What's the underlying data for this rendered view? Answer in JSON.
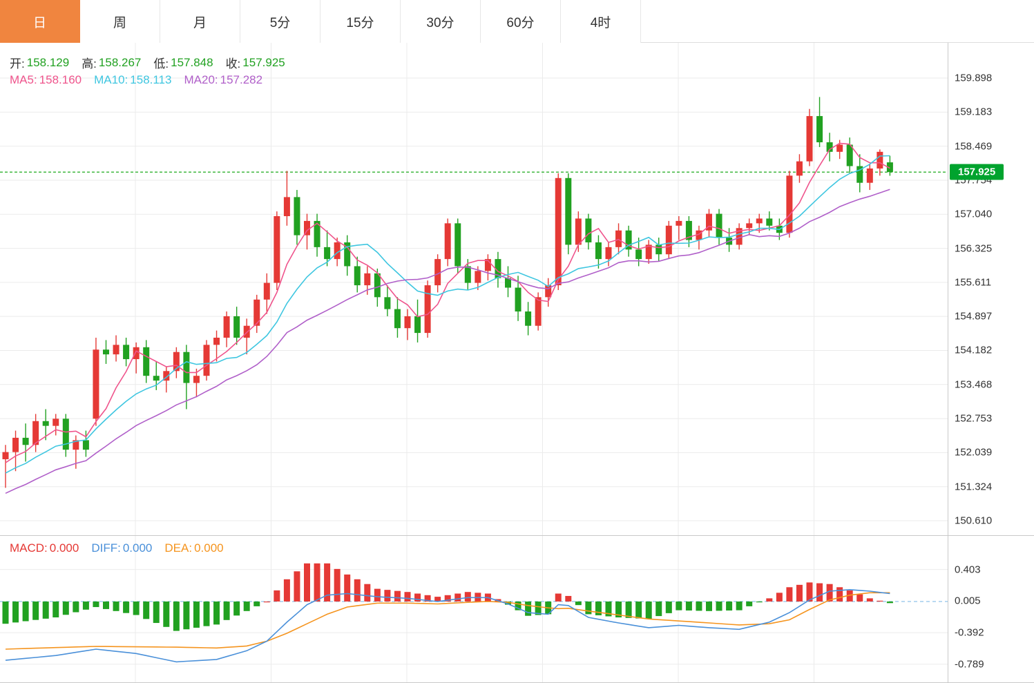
{
  "tabs": {
    "items": [
      {
        "label": "日",
        "active": true
      },
      {
        "label": "周",
        "active": false
      },
      {
        "label": "月",
        "active": false
      },
      {
        "label": "5分",
        "active": false
      },
      {
        "label": "15分",
        "active": false
      },
      {
        "label": "30分",
        "active": false
      },
      {
        "label": "60分",
        "active": false
      },
      {
        "label": "4时",
        "active": false
      }
    ]
  },
  "legend": {
    "ohlc": {
      "open_label": "开:",
      "open": "158.129",
      "high_label": "高:",
      "high": "158.267",
      "low_label": "低:",
      "low": "157.848",
      "close_label": "收:",
      "close": "157.925"
    },
    "ma": {
      "ma5_label": "MA5:",
      "ma5": "158.160",
      "ma10_label": "MA10:",
      "ma10": "158.113",
      "ma20_label": "MA20:",
      "ma20": "157.282"
    }
  },
  "macd_legend": {
    "macd_label": "MACD:",
    "macd": "0.000",
    "diff_label": "DIFF:",
    "diff": "0.000",
    "dea_label": "DEA:",
    "dea": "0.000"
  },
  "current_price": {
    "value": "157.925",
    "price": 157.925
  },
  "colors": {
    "up": "#e53935",
    "down": "#21a121",
    "tab_active": "#f0853f",
    "price_tag_bg": "#00a32e",
    "current_line": "#00a000",
    "ma5": "#ef548c",
    "ma10": "#3ec6e0",
    "ma20": "#b05fc9",
    "diff": "#4a90d9",
    "dea": "#f5941e",
    "grid": "#ebebeb",
    "zero_line": "#8fc2ea"
  },
  "chart_data": {
    "type": "candlestick",
    "price_ticks": [
      "159.898",
      "159.183",
      "158.469",
      "157.754",
      "157.040",
      "156.325",
      "155.611",
      "154.897",
      "154.182",
      "153.468",
      "152.753",
      "152.039",
      "151.324",
      "150.610"
    ],
    "macd_ticks": [
      "0.403",
      "0.005",
      "-0.392",
      "-0.789"
    ],
    "ma_periods": [
      5,
      10,
      20
    ],
    "pre_closes": [
      150.3,
      150.38,
      150.47,
      150.55,
      150.64,
      150.72,
      150.8,
      150.89,
      150.97,
      151.06,
      151.14,
      151.22,
      151.31,
      151.39,
      151.48,
      151.56,
      151.64,
      151.73,
      151.81,
      151.9
    ],
    "candles": [
      [
        151.9,
        152.2,
        151.3,
        152.05
      ],
      [
        152.05,
        152.5,
        151.65,
        152.35
      ],
      [
        152.35,
        152.65,
        151.85,
        152.2
      ],
      [
        152.2,
        152.85,
        152.05,
        152.7
      ],
      [
        152.7,
        152.95,
        152.3,
        152.6
      ],
      [
        152.6,
        152.85,
        152.4,
        152.75
      ],
      [
        152.75,
        152.85,
        151.95,
        152.1
      ],
      [
        152.1,
        152.4,
        151.7,
        152.3
      ],
      [
        152.3,
        152.5,
        151.95,
        152.1
      ],
      [
        152.75,
        154.45,
        152.6,
        154.2
      ],
      [
        154.2,
        154.4,
        153.9,
        154.1
      ],
      [
        154.1,
        154.5,
        153.95,
        154.3
      ],
      [
        154.3,
        154.45,
        153.85,
        154.0
      ],
      [
        154.0,
        154.35,
        153.7,
        154.25
      ],
      [
        154.25,
        154.4,
        153.5,
        153.65
      ],
      [
        153.65,
        153.95,
        153.35,
        153.55
      ],
      [
        153.55,
        153.85,
        153.3,
        153.75
      ],
      [
        153.75,
        154.25,
        153.6,
        154.15
      ],
      [
        154.15,
        154.3,
        152.95,
        153.5
      ],
      [
        153.5,
        153.8,
        153.2,
        153.65
      ],
      [
        153.65,
        154.4,
        153.55,
        154.3
      ],
      [
        154.3,
        154.6,
        153.95,
        154.45
      ],
      [
        154.45,
        155.0,
        154.25,
        154.9
      ],
      [
        154.9,
        155.1,
        154.3,
        154.45
      ],
      [
        154.45,
        154.85,
        154.1,
        154.7
      ],
      [
        154.7,
        155.35,
        154.55,
        155.25
      ],
      [
        155.25,
        155.8,
        154.95,
        155.6
      ],
      [
        155.6,
        157.1,
        155.45,
        157.0
      ],
      [
        157.0,
        157.95,
        156.8,
        157.4
      ],
      [
        157.4,
        157.55,
        156.4,
        156.6
      ],
      [
        156.6,
        157.05,
        156.3,
        156.9
      ],
      [
        156.9,
        157.05,
        156.15,
        156.35
      ],
      [
        156.35,
        156.7,
        155.95,
        156.1
      ],
      [
        156.1,
        156.55,
        155.95,
        156.45
      ],
      [
        156.45,
        156.6,
        155.75,
        155.95
      ],
      [
        155.95,
        156.15,
        155.4,
        155.55
      ],
      [
        155.55,
        155.95,
        155.35,
        155.8
      ],
      [
        155.8,
        155.9,
        155.1,
        155.3
      ],
      [
        155.3,
        155.55,
        154.9,
        155.05
      ],
      [
        155.05,
        155.3,
        154.45,
        154.65
      ],
      [
        154.65,
        155.05,
        154.4,
        154.9
      ],
      [
        154.9,
        155.25,
        154.35,
        154.55
      ],
      [
        154.55,
        155.65,
        154.45,
        155.55
      ],
      [
        155.55,
        156.2,
        155.4,
        156.1
      ],
      [
        156.1,
        156.95,
        155.95,
        156.85
      ],
      [
        156.85,
        156.95,
        155.8,
        155.95
      ],
      [
        155.95,
        156.1,
        155.45,
        155.6
      ],
      [
        155.6,
        155.95,
        155.45,
        155.85
      ],
      [
        155.85,
        156.2,
        155.65,
        156.1
      ],
      [
        156.1,
        156.25,
        155.5,
        155.7
      ],
      [
        155.7,
        155.95,
        155.3,
        155.5
      ],
      [
        155.5,
        155.75,
        154.8,
        155.0
      ],
      [
        155.0,
        155.2,
        154.5,
        154.7
      ],
      [
        154.7,
        155.4,
        154.6,
        155.3
      ],
      [
        155.3,
        155.7,
        155.1,
        155.55
      ],
      [
        155.55,
        157.9,
        155.45,
        157.8
      ],
      [
        157.8,
        157.9,
        156.2,
        156.4
      ],
      [
        156.4,
        157.1,
        156.25,
        156.95
      ],
      [
        156.95,
        157.05,
        156.3,
        156.45
      ],
      [
        156.45,
        156.6,
        155.9,
        156.1
      ],
      [
        156.1,
        156.45,
        155.95,
        156.35
      ],
      [
        156.35,
        156.85,
        156.2,
        156.7
      ],
      [
        156.7,
        156.8,
        156.15,
        156.3
      ],
      [
        156.3,
        156.55,
        155.95,
        156.1
      ],
      [
        156.1,
        156.5,
        156.0,
        156.4
      ],
      [
        156.4,
        156.55,
        156.05,
        156.2
      ],
      [
        156.2,
        156.9,
        156.1,
        156.8
      ],
      [
        156.8,
        157.0,
        156.5,
        156.9
      ],
      [
        156.9,
        157.0,
        156.35,
        156.5
      ],
      [
        156.5,
        156.8,
        156.3,
        156.7
      ],
      [
        156.7,
        157.15,
        156.55,
        157.05
      ],
      [
        157.05,
        157.15,
        156.4,
        156.55
      ],
      [
        156.55,
        156.75,
        156.25,
        156.4
      ],
      [
        156.4,
        156.85,
        156.3,
        156.75
      ],
      [
        156.75,
        156.95,
        156.6,
        156.85
      ],
      [
        156.85,
        157.05,
        156.65,
        156.95
      ],
      [
        156.95,
        157.1,
        156.7,
        156.8
      ],
      [
        156.8,
        156.95,
        156.5,
        156.65
      ],
      [
        156.65,
        157.95,
        156.55,
        157.85
      ],
      [
        157.85,
        158.3,
        157.7,
        158.15
      ],
      [
        158.15,
        159.25,
        158.05,
        159.1
      ],
      [
        159.1,
        159.5,
        158.45,
        158.55
      ],
      [
        158.55,
        158.75,
        158.15,
        158.35
      ],
      [
        158.35,
        158.6,
        158.2,
        158.5
      ],
      [
        158.5,
        158.65,
        157.9,
        158.05
      ],
      [
        158.05,
        158.3,
        157.5,
        157.7
      ],
      [
        157.7,
        158.1,
        157.55,
        158.0
      ],
      [
        158.0,
        158.4,
        157.85,
        158.35
      ],
      [
        158.129,
        158.267,
        157.848,
        157.925
      ]
    ],
    "macd_anchors": [
      [
        0,
        -0.74,
        -0.6
      ],
      [
        5,
        -0.68,
        -0.58
      ],
      [
        9,
        -0.6,
        -0.565
      ],
      [
        13,
        -0.655,
        -0.57
      ],
      [
        17,
        -0.76,
        -0.575
      ],
      [
        21,
        -0.73,
        -0.585
      ],
      [
        24,
        -0.62,
        -0.56
      ],
      [
        26,
        -0.5,
        -0.5
      ],
      [
        28,
        -0.26,
        -0.4
      ],
      [
        30,
        -0.04,
        -0.28
      ],
      [
        32,
        0.08,
        -0.16
      ],
      [
        34,
        0.1,
        -0.07
      ],
      [
        37,
        0.06,
        -0.02
      ],
      [
        40,
        0.04,
        -0.02
      ],
      [
        43,
        0.0,
        -0.03
      ],
      [
        46,
        0.05,
        -0.01
      ],
      [
        48,
        0.05,
        0.0
      ],
      [
        50,
        -0.03,
        -0.01
      ],
      [
        52,
        -0.14,
        -0.05
      ],
      [
        54,
        -0.16,
        -0.08
      ],
      [
        55,
        -0.04,
        -0.09
      ],
      [
        56,
        -0.05,
        -0.085
      ],
      [
        58,
        -0.2,
        -0.12
      ],
      [
        61,
        -0.27,
        -0.17
      ],
      [
        64,
        -0.33,
        -0.22
      ],
      [
        67,
        -0.3,
        -0.245
      ],
      [
        70,
        -0.33,
        -0.27
      ],
      [
        73,
        -0.35,
        -0.295
      ],
      [
        76,
        -0.26,
        -0.28
      ],
      [
        78,
        -0.14,
        -0.23
      ],
      [
        80,
        0.02,
        -0.1
      ],
      [
        82,
        0.13,
        0.02
      ],
      [
        84,
        0.15,
        0.08
      ],
      [
        86,
        0.13,
        0.11
      ],
      [
        88,
        0.1,
        0.11
      ]
    ]
  }
}
